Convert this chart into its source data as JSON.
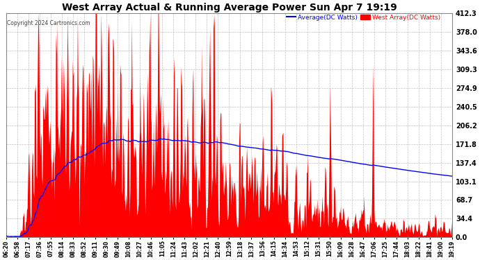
{
  "title": "West Array Actual & Running Average Power Sun Apr 7 19:19",
  "copyright": "Copyright 2024 Cartronics.com",
  "legend_avg": "Average(DC Watts)",
  "legend_west": "West Array(DC Watts)",
  "ylim": [
    0.0,
    412.3
  ],
  "yticks": [
    0.0,
    34.4,
    68.7,
    103.1,
    137.4,
    171.8,
    206.2,
    240.5,
    274.9,
    309.3,
    343.6,
    378.0,
    412.3
  ],
  "bg_color": "#ffffff",
  "grid_color": "#bbbbbb",
  "fill_color": "#ff0000",
  "avg_color": "#0000ff",
  "west_color": "#ff0000",
  "title_color": "#000000",
  "copyright_color": "#000000",
  "time_labels": [
    "06:20",
    "06:58",
    "07:17",
    "07:36",
    "07:55",
    "08:14",
    "08:33",
    "08:52",
    "09:11",
    "09:30",
    "09:49",
    "10:08",
    "10:27",
    "10:46",
    "11:05",
    "11:24",
    "11:43",
    "12:02",
    "12:21",
    "12:40",
    "12:59",
    "13:18",
    "13:37",
    "13:56",
    "14:15",
    "14:34",
    "14:53",
    "15:12",
    "15:31",
    "15:50",
    "16:09",
    "16:28",
    "16:47",
    "17:06",
    "17:25",
    "17:44",
    "18:03",
    "18:22",
    "18:41",
    "19:00",
    "19:19"
  ]
}
